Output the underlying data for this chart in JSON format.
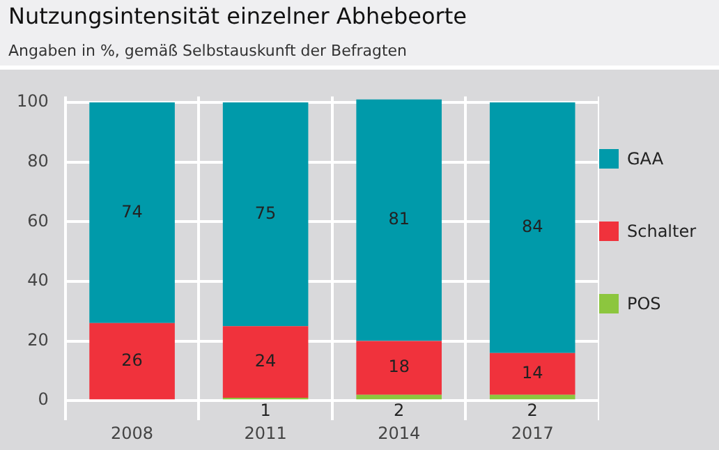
{
  "chart_data": {
    "type": "bar",
    "title": "Nutzungsintensität einzelner Abhebeorte",
    "subtitle": "Angaben in %, gemäß Selbstauskunft der Befragten",
    "categories": [
      "2008",
      "2011",
      "2014",
      "2017"
    ],
    "stacked": true,
    "ylim": [
      0,
      102
    ],
    "yticks": [
      0,
      20,
      40,
      60,
      80,
      100
    ],
    "grid": true,
    "legend": "right",
    "series": [
      {
        "name": "POS",
        "color": "#8cc63e",
        "values": [
          0,
          1,
          2,
          2
        ],
        "value_labels": [
          null,
          "1",
          "2",
          "2"
        ]
      },
      {
        "name": "Schalter",
        "color": "#f0323c",
        "values": [
          26,
          24,
          18,
          14
        ],
        "value_labels": [
          "26",
          "24",
          "18",
          "14"
        ]
      },
      {
        "name": "GAA",
        "color": "#009aaa",
        "values": [
          74,
          75,
          81,
          84
        ],
        "value_labels": [
          "74",
          "75",
          "81",
          "84"
        ]
      }
    ]
  }
}
